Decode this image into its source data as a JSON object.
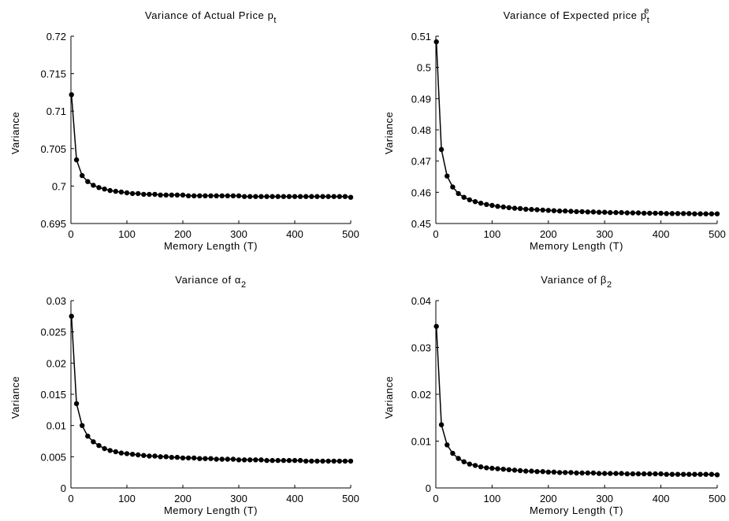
{
  "chart_data": [
    {
      "type": "line",
      "title": "Variance of Actual Price p",
      "title_sub": "t",
      "xlabel": "Memory Length (T)",
      "ylabel": "Variance",
      "xlim": [
        0,
        500
      ],
      "ylim": [
        0.695,
        0.72
      ],
      "xticks": [
        "0",
        "100",
        "200",
        "300",
        "400",
        "500"
      ],
      "yticks": [
        "0.695",
        "0.7",
        "0.705",
        "0.71",
        "0.715",
        "0.72"
      ],
      "grid": false,
      "marker": "filled-circle",
      "line_color": "#000000",
      "x": [
        1,
        10,
        20,
        30,
        40,
        50,
        60,
        70,
        80,
        90,
        100,
        110,
        120,
        130,
        140,
        150,
        160,
        170,
        180,
        190,
        200,
        210,
        220,
        230,
        240,
        250,
        260,
        270,
        280,
        290,
        300,
        310,
        320,
        330,
        340,
        350,
        360,
        370,
        380,
        390,
        400,
        410,
        420,
        430,
        440,
        450,
        460,
        470,
        480,
        490,
        500
      ],
      "y": [
        0.7122,
        0.7035,
        0.7014,
        0.7006,
        0.7001,
        0.6998,
        0.6996,
        0.6994,
        0.6993,
        0.6992,
        0.6991,
        0.699,
        0.699,
        0.6989,
        0.6989,
        0.6989,
        0.6988,
        0.6988,
        0.6988,
        0.6988,
        0.6988,
        0.6987,
        0.6987,
        0.6987,
        0.6987,
        0.6987,
        0.6987,
        0.6987,
        0.6987,
        0.6987,
        0.6987,
        0.6986,
        0.6986,
        0.6986,
        0.6986,
        0.6986,
        0.6986,
        0.6986,
        0.6986,
        0.6986,
        0.6986,
        0.6986,
        0.6986,
        0.6986,
        0.6986,
        0.6986,
        0.6986,
        0.6986,
        0.6986,
        0.6986,
        0.6985
      ]
    },
    {
      "type": "line",
      "title": "Variance of Expected price p",
      "title_sub": "t",
      "title_sup": "e",
      "xlabel": "Memory Length (T)",
      "ylabel": "Variance",
      "xlim": [
        0,
        500
      ],
      "ylim": [
        0.45,
        0.51
      ],
      "xticks": [
        "0",
        "100",
        "200",
        "300",
        "400",
        "500"
      ],
      "yticks": [
        "0.45",
        "0.46",
        "0.47",
        "0.48",
        "0.49",
        "0.5",
        "0.51"
      ],
      "grid": false,
      "marker": "filled-circle",
      "line_color": "#000000",
      "x": [
        1,
        10,
        20,
        30,
        40,
        50,
        60,
        70,
        80,
        90,
        100,
        110,
        120,
        130,
        140,
        150,
        160,
        170,
        180,
        190,
        200,
        210,
        220,
        230,
        240,
        250,
        260,
        270,
        280,
        290,
        300,
        310,
        320,
        330,
        340,
        350,
        360,
        370,
        380,
        390,
        400,
        410,
        420,
        430,
        440,
        450,
        460,
        470,
        480,
        490,
        500
      ],
      "y": [
        0.5082,
        0.4737,
        0.4652,
        0.4617,
        0.4596,
        0.4584,
        0.4576,
        0.457,
        0.4565,
        0.4561,
        0.4558,
        0.4555,
        0.4553,
        0.4551,
        0.4549,
        0.4548,
        0.4546,
        0.4545,
        0.4544,
        0.4543,
        0.4542,
        0.4541,
        0.454,
        0.454,
        0.4539,
        0.4538,
        0.4538,
        0.4537,
        0.4537,
        0.4536,
        0.4536,
        0.4535,
        0.4535,
        0.4535,
        0.4534,
        0.4534,
        0.4534,
        0.4533,
        0.4533,
        0.4533,
        0.4533,
        0.4532,
        0.4532,
        0.4532,
        0.4532,
        0.4532,
        0.4531,
        0.4531,
        0.4531,
        0.4531,
        0.4531
      ]
    },
    {
      "type": "line",
      "title": "Variance of α",
      "title_sub": "2",
      "xlabel": "Memory Length (T)",
      "ylabel": "Variance",
      "xlim": [
        0,
        500
      ],
      "ylim": [
        0,
        0.03
      ],
      "xticks": [
        "0",
        "100",
        "200",
        "300",
        "400",
        "500"
      ],
      "yticks": [
        "0",
        "0.005",
        "0.01",
        "0.015",
        "0.02",
        "0.025",
        "0.03"
      ],
      "grid": false,
      "marker": "filled-circle",
      "line_color": "#000000",
      "x": [
        1,
        10,
        20,
        30,
        40,
        50,
        60,
        70,
        80,
        90,
        100,
        110,
        120,
        130,
        140,
        150,
        160,
        170,
        180,
        190,
        200,
        210,
        220,
        230,
        240,
        250,
        260,
        270,
        280,
        290,
        300,
        310,
        320,
        330,
        340,
        350,
        360,
        370,
        380,
        390,
        400,
        410,
        420,
        430,
        440,
        450,
        460,
        470,
        480,
        490,
        500
      ],
      "y": [
        0.0275,
        0.0135,
        0.01,
        0.0083,
        0.0074,
        0.0068,
        0.0063,
        0.006,
        0.0058,
        0.0056,
        0.0055,
        0.0054,
        0.0053,
        0.0052,
        0.0051,
        0.0051,
        0.005,
        0.005,
        0.0049,
        0.0049,
        0.0048,
        0.0048,
        0.0048,
        0.0047,
        0.0047,
        0.0047,
        0.0046,
        0.0046,
        0.0046,
        0.0046,
        0.0045,
        0.0045,
        0.0045,
        0.0045,
        0.0045,
        0.0044,
        0.0044,
        0.0044,
        0.0044,
        0.0044,
        0.0044,
        0.0044,
        0.0043,
        0.0043,
        0.0043,
        0.0043,
        0.0043,
        0.0043,
        0.0043,
        0.0043,
        0.0043
      ]
    },
    {
      "type": "line",
      "title": "Variance of β",
      "title_sub": "2",
      "xlabel": "Memory Length (T)",
      "ylabel": "Variance",
      "xlim": [
        0,
        500
      ],
      "ylim": [
        0,
        0.04
      ],
      "xticks": [
        "0",
        "100",
        "200",
        "300",
        "400",
        "500"
      ],
      "yticks": [
        "0",
        "0.01",
        "0.02",
        "0.03",
        "0.04"
      ],
      "grid": false,
      "marker": "filled-circle",
      "line_color": "#000000",
      "x": [
        1,
        10,
        20,
        30,
        40,
        50,
        60,
        70,
        80,
        90,
        100,
        110,
        120,
        130,
        140,
        150,
        160,
        170,
        180,
        190,
        200,
        210,
        220,
        230,
        240,
        250,
        260,
        270,
        280,
        290,
        300,
        310,
        320,
        330,
        340,
        350,
        360,
        370,
        380,
        390,
        400,
        410,
        420,
        430,
        440,
        450,
        460,
        470,
        480,
        490,
        500
      ],
      "y": [
        0.0345,
        0.0135,
        0.0092,
        0.0074,
        0.0063,
        0.0056,
        0.0051,
        0.0048,
        0.0045,
        0.0043,
        0.0042,
        0.0041,
        0.004,
        0.0039,
        0.0038,
        0.0037,
        0.0036,
        0.0036,
        0.0035,
        0.0035,
        0.0034,
        0.0034,
        0.0033,
        0.0033,
        0.0033,
        0.0032,
        0.0032,
        0.0032,
        0.0032,
        0.0031,
        0.0031,
        0.0031,
        0.0031,
        0.0031,
        0.003,
        0.003,
        0.003,
        0.003,
        0.003,
        0.003,
        0.003,
        0.0029,
        0.0029,
        0.0029,
        0.0029,
        0.0029,
        0.0029,
        0.0029,
        0.0029,
        0.0029,
        0.0028
      ]
    }
  ]
}
